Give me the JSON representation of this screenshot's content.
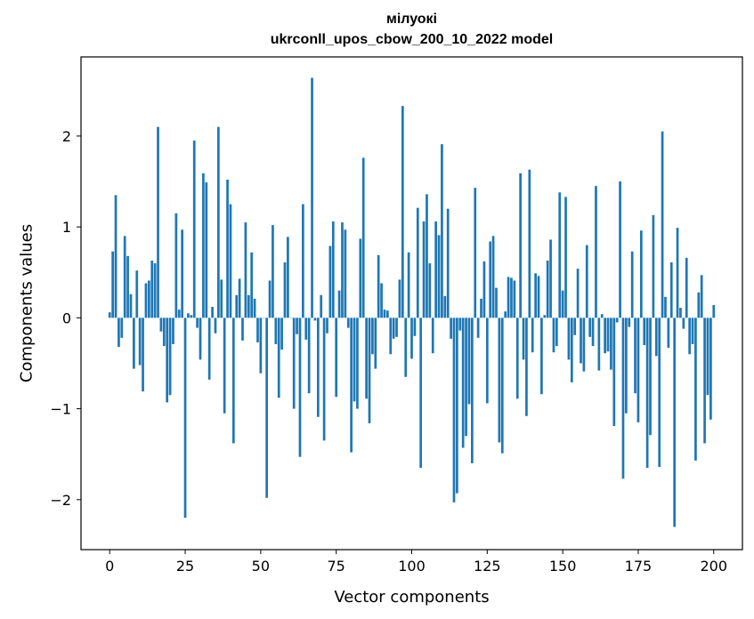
{
  "chart_data": {
    "type": "bar",
    "title": "мілуокі",
    "subtitle": "ukrconll_upos_cbow_200_10_2022 model",
    "xlabel": "Vector components",
    "ylabel": "Components values",
    "xlim": [
      -9.5,
      209.5
    ],
    "ylim": [
      -2.55,
      2.87
    ],
    "xticks": [
      0,
      25,
      50,
      75,
      100,
      125,
      150,
      175,
      200
    ],
    "yticks": [
      -2,
      -1,
      0,
      1,
      2
    ],
    "ytick_labels": [
      "−2",
      "−1",
      "0",
      "1",
      "2"
    ],
    "bar_color": "#1f77b4",
    "grid": false,
    "values": [
      0.06,
      0.73,
      1.35,
      -0.32,
      -0.22,
      0.9,
      0.68,
      0.26,
      -0.56,
      0.52,
      -0.52,
      -0.81,
      0.38,
      0.41,
      0.63,
      0.6,
      2.1,
      -0.15,
      -0.31,
      -0.93,
      -0.85,
      -0.29,
      1.15,
      0.09,
      0.97,
      -2.2,
      0.05,
      0.03,
      1.95,
      -0.11,
      -0.46,
      1.59,
      1.49,
      -0.68,
      0.12,
      -0.17,
      2.1,
      0.42,
      -1.05,
      1.52,
      1.25,
      -1.38,
      0.25,
      0.43,
      -0.25,
      1.05,
      0.25,
      0.72,
      0.21,
      -0.27,
      -0.61,
      0.0,
      -1.98,
      0.41,
      1.02,
      -0.29,
      -0.88,
      -0.35,
      0.61,
      0.89,
      0.0,
      -1.0,
      -0.18,
      -1.53,
      1.25,
      -0.24,
      -0.83,
      2.64,
      -0.03,
      -1.09,
      0.25,
      -1.35,
      -0.17,
      0.79,
      1.06,
      -0.87,
      0.3,
      1.05,
      0.97,
      -0.11,
      -1.48,
      -0.92,
      -1.0,
      0.87,
      1.76,
      -0.89,
      -1.16,
      -0.4,
      -0.56,
      0.69,
      0.38,
      0.09,
      0.08,
      -0.4,
      -0.23,
      -0.21,
      0.42,
      2.33,
      -0.65,
      0.72,
      -0.45,
      -0.2,
      1.21,
      -1.65,
      1.06,
      1.36,
      0.6,
      -0.39,
      1.06,
      0.91,
      1.91,
      0.24,
      1.2,
      -0.23,
      -2.03,
      -1.93,
      -0.14,
      -1.43,
      -1.3,
      -0.95,
      -1.6,
      1.43,
      -0.22,
      0.21,
      0.62,
      -0.94,
      0.84,
      0.9,
      0.33,
      -1.37,
      -1.49,
      0.07,
      0.45,
      0.44,
      0.41,
      -0.89,
      1.59,
      -0.46,
      -1.08,
      1.63,
      -0.38,
      0.49,
      0.46,
      -0.84,
      0.03,
      0.63,
      0.86,
      -0.38,
      -0.31,
      1.38,
      0.3,
      1.33,
      -0.46,
      -0.71,
      -0.19,
      0.54,
      -0.5,
      -0.59,
      0.8,
      -0.21,
      -0.31,
      1.45,
      -0.58,
      0.04,
      -0.39,
      -0.37,
      -0.57,
      -1.19,
      -0.05,
      1.5,
      -1.77,
      -1.05,
      -0.1,
      0.73,
      -0.83,
      -1.15,
      0.96,
      -0.3,
      -1.65,
      -1.29,
      1.13,
      -0.42,
      -1.64,
      2.05,
      0.23,
      -0.33,
      0.61,
      -2.3,
      0.99,
      0.11,
      -0.12,
      0.66,
      -0.4,
      -0.29,
      -1.57,
      0.28,
      0.47,
      -1.38,
      -0.85,
      -1.12,
      0.14
    ]
  }
}
